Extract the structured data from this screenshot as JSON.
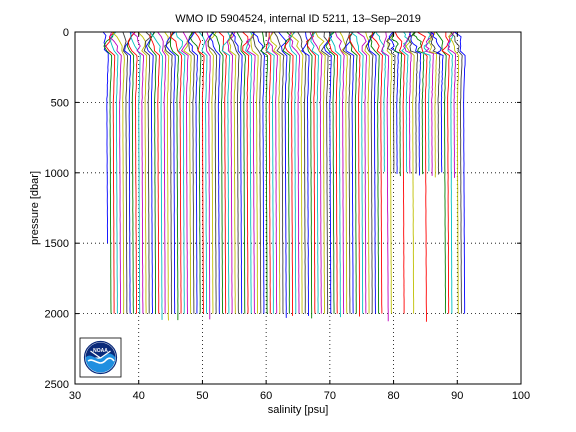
{
  "chart_data": {
    "type": "line",
    "title": "WMO ID 5904524, internal ID 5211, 13–Sep–2019",
    "xlabel": "salinity [psu]",
    "ylabel": "pressure [dbar]",
    "xlim": [
      30,
      100
    ],
    "ylim": [
      0,
      2500
    ],
    "y_reversed": true,
    "xticks": [
      30,
      40,
      50,
      60,
      70,
      80,
      90,
      100
    ],
    "yticks": [
      0,
      500,
      1000,
      1500,
      2000,
      2500
    ],
    "grid": true,
    "grid_style": "dotted",
    "legend": "none",
    "profile_offset_psu": 0.5,
    "profile_colors": [
      "#0000ff",
      "#008000",
      "#ff0000",
      "#00bfbf",
      "#bf00bf",
      "#bfbf00",
      "#404040"
    ],
    "series_summary": {
      "profile_count": 113,
      "first_profile_surface_salinity": 34.8,
      "last_profile_surface_salinity": 90.8,
      "typical_max_pressure": 2000,
      "short_profiles_max_pressure": 1000,
      "short_profiles_salinity_range": [
        78,
        91
      ]
    },
    "logo": {
      "name": "noaa-logo",
      "text": "NOAA"
    }
  }
}
